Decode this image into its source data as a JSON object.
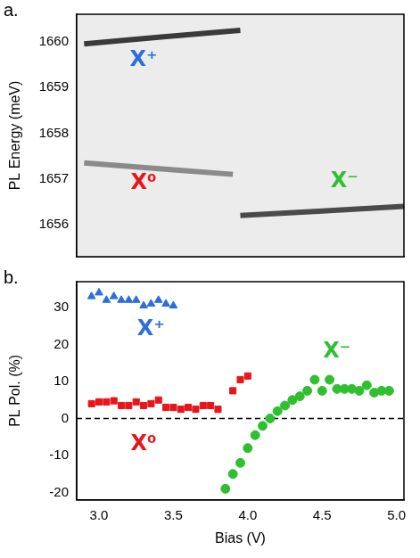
{
  "chart_data": [
    {
      "panel": "a.",
      "type": "line",
      "y_label": "PL Energy (meV)",
      "tick_labels": "y",
      "grid": false,
      "xlim": [
        2.85,
        5.05
      ],
      "xticks": [
        3,
        3.5,
        4,
        4.5,
        5
      ],
      "ylim": [
        1655.3,
        1660.6
      ],
      "yticks": [
        1656,
        1657,
        1658,
        1659,
        1660
      ],
      "series": [
        {
          "name": "X⁺",
          "color": "#3a3a3a",
          "label_color": "#2a6fdb",
          "label_position": {
            "x": 3.3,
            "y": 1659.6
          },
          "x": [
            2.9,
            3.4,
            3.95
          ],
          "values": [
            1659.95,
            1660.1,
            1660.25
          ]
        },
        {
          "name": "X⁰",
          "color": "#8a8a8a",
          "label_color": "#e8161b",
          "label_position": {
            "x": 3.3,
            "y": 1656.9
          },
          "x": [
            2.9,
            3.5,
            3.9
          ],
          "values": [
            1657.35,
            1657.2,
            1657.1
          ]
        },
        {
          "name": "X⁻",
          "color": "#4a4a4a",
          "label_color": "#2fbf2f",
          "label_position": {
            "x": 4.65,
            "y": 1656.95
          },
          "x": [
            3.95,
            4.5,
            5.05
          ],
          "values": [
            1656.2,
            1656.3,
            1656.4
          ]
        }
      ]
    },
    {
      "panel": "b.",
      "type": "scatter",
      "x_label": "Bias (V)",
      "y_label": "PL Pol. (%)",
      "grid": false,
      "xlim": [
        2.85,
        5.05
      ],
      "xticks": [
        {
          "value": 3,
          "label": "3.0"
        },
        {
          "value": 3.5,
          "label": "3.5"
        },
        {
          "value": 4,
          "label": "4.0"
        },
        {
          "value": 4.5,
          "label": "4.5"
        },
        {
          "value": 5,
          "label": "5.0"
        }
      ],
      "ylim": [
        -22,
        37
      ],
      "yticks": [
        -20,
        -10,
        0,
        10,
        20,
        30
      ],
      "reference_line": {
        "y": 0,
        "line_style": "dashed"
      },
      "series": [
        {
          "name": "X⁺",
          "color": "#2a6fdb",
          "label_color": "#2a6fdb",
          "marker": "triangle",
          "label_position": {
            "x": 3.35,
            "y": 24
          },
          "x": [
            2.95,
            3.0,
            3.05,
            3.1,
            3.15,
            3.2,
            3.25,
            3.3,
            3.35,
            3.4,
            3.45,
            3.5
          ],
          "values": [
            33,
            34,
            32,
            33,
            32,
            32,
            32,
            30.5,
            31,
            32,
            31,
            30.5
          ]
        },
        {
          "name": "X⁰",
          "color": "#e8161b",
          "label_color": "#e8161b",
          "marker": "square",
          "label_position": {
            "x": 3.3,
            "y": -7
          },
          "x": [
            2.95,
            3.0,
            3.05,
            3.1,
            3.15,
            3.2,
            3.25,
            3.3,
            3.35,
            3.4,
            3.45,
            3.5,
            3.55,
            3.6,
            3.65,
            3.7,
            3.75,
            3.8,
            3.9,
            3.95,
            4.0
          ],
          "values": [
            4,
            4.5,
            4.5,
            4.8,
            3.5,
            3.5,
            4.5,
            3.5,
            4,
            5,
            3,
            3,
            2.5,
            3,
            2.5,
            3.5,
            3.5,
            2.5,
            7.5,
            10.5,
            11.5
          ]
        },
        {
          "name": "X⁻",
          "color": "#2fbf2f",
          "label_color": "#2fbf2f",
          "marker": "circle",
          "label_position": {
            "x": 4.6,
            "y": 18
          },
          "x": [
            3.85,
            3.9,
            3.95,
            4.0,
            4.05,
            4.1,
            4.15,
            4.2,
            4.25,
            4.3,
            4.35,
            4.4,
            4.45,
            4.5,
            4.55,
            4.6,
            4.65,
            4.7,
            4.75,
            4.8,
            4.85,
            4.9,
            4.95
          ],
          "values": [
            -19,
            -15,
            -12,
            -8,
            -4.5,
            -2,
            0,
            2,
            3.5,
            5,
            6,
            7.5,
            10.5,
            7.5,
            10.5,
            8,
            8,
            8,
            7.5,
            9,
            7,
            7.5,
            7.5
          ]
        }
      ]
    }
  ]
}
